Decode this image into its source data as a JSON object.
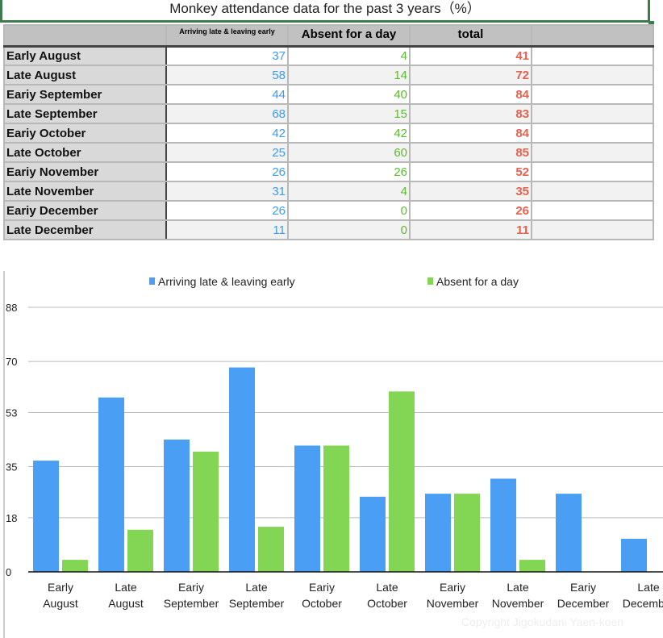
{
  "title": "Monkey attendance data for the past 3 years（%）",
  "table": {
    "headers": [
      "",
      "Arriving late & leaving early",
      "Absent for a day",
      "total",
      ""
    ],
    "rows": [
      [
        "Early August",
        37,
        4,
        41
      ],
      [
        "Late August",
        58,
        14,
        72
      ],
      [
        "Eariy September",
        44,
        40,
        84
      ],
      [
        "Late September",
        68,
        15,
        83
      ],
      [
        "Eariy October",
        42,
        42,
        84
      ],
      [
        "Late October",
        25,
        60,
        85
      ],
      [
        "Eariy November",
        26,
        26,
        52
      ],
      [
        "Late November",
        31,
        4,
        35
      ],
      [
        "Eariy December",
        26,
        0,
        26
      ],
      [
        "Late December",
        11,
        0,
        11
      ]
    ]
  },
  "chart_data": {
    "type": "bar",
    "categories": [
      "Early\nAugust",
      "Late\nAugust",
      "Eariy\nSeptember",
      "Late\nSeptember",
      "Eariy\nOctober",
      "Late\nOctober",
      "Eariy\nNovember",
      "Late\nNovember",
      "Eariy\nDecember",
      "Late\nDecember"
    ],
    "series": [
      {
        "name": "Arriving late & leaving early",
        "color": "#4a9ff5",
        "values": [
          37,
          58,
          44,
          68,
          42,
          25,
          26,
          31,
          26,
          11
        ]
      },
      {
        "name": "Absent for  a day",
        "color": "#83d554",
        "values": [
          4,
          14,
          40,
          15,
          42,
          60,
          26,
          4,
          0,
          0
        ]
      }
    ],
    "yticks": [
      0,
      18,
      35,
      53,
      70,
      88
    ],
    "ylim": [
      0,
      88
    ],
    "grid": true,
    "legend": "top"
  },
  "copyright": "Copyright Jigokudani Yaen-koen"
}
